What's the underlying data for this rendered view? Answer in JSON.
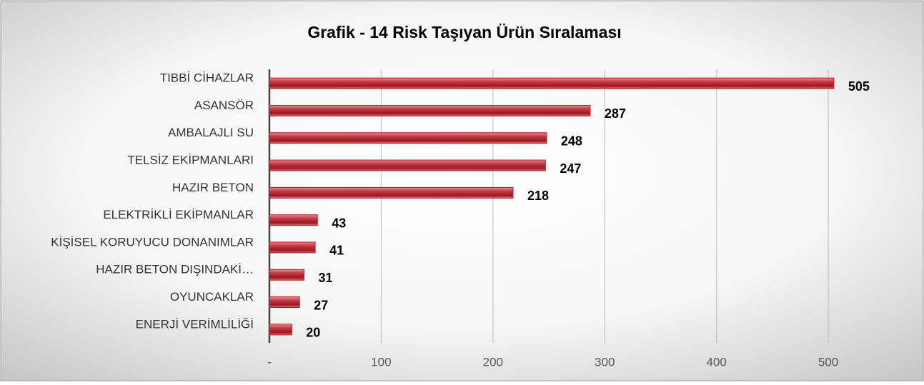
{
  "chart_data": {
    "type": "bar",
    "orientation": "horizontal",
    "title": "Grafik - 14 Risk Taşıyan Ürün Sıralaması",
    "categories": [
      "TIBBİ CİHAZLAR",
      "ASANSÖR",
      "AMBALAJLI SU",
      "TELSİZ EKİPMANLARI",
      "HAZIR BETON",
      "ELEKTRİKLİ EKİPMANLAR",
      "KİŞİSEL KORUYUCU DONANIMLAR",
      "HAZIR BETON DIŞINDAKİ…",
      "OYUNCAKLAR",
      "ENERJİ VERİMLİLİĞİ"
    ],
    "values": [
      505,
      287,
      248,
      247,
      218,
      43,
      41,
      31,
      27,
      20
    ],
    "color": "#b0202a",
    "xlim": [
      0,
      530
    ],
    "xticks": [
      {
        "value": 0,
        "label": "-"
      },
      100,
      200,
      300,
      400,
      500
    ],
    "grid": true
  }
}
